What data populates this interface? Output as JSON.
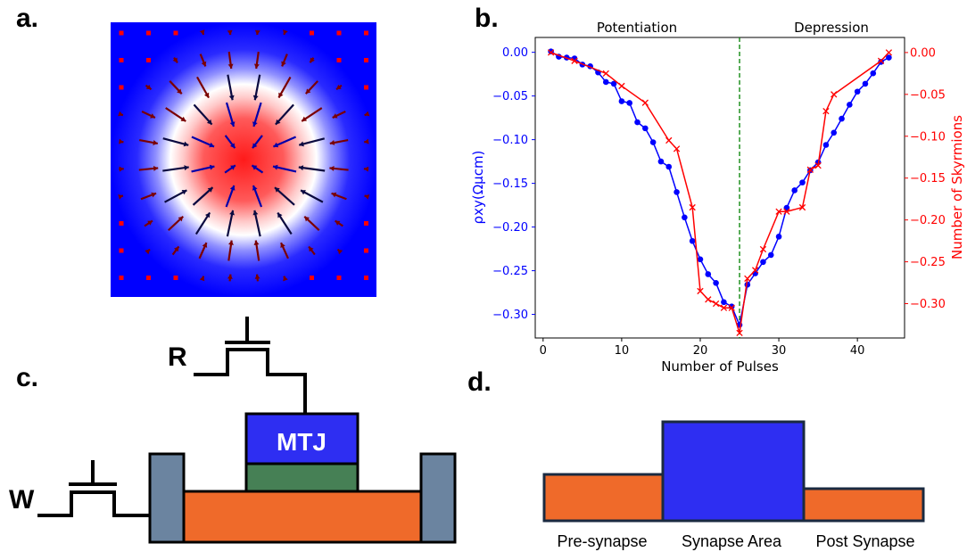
{
  "panels": {
    "a": "a.",
    "b": "b.",
    "c": "c.",
    "d": "d."
  },
  "colors": {
    "blue_series": "#0000ff",
    "red_series": "#ff0000",
    "divider": "#008000",
    "orange": "#ef6a2a",
    "mtj_blue": "#2e2ef2",
    "green": "#468055",
    "steel": "#6b84a0"
  },
  "skyrmion_map": {
    "description_icon": "skyrmion-spin-texture"
  },
  "chart_data": {
    "type": "line",
    "xlabel": "Number of Pulses",
    "ylabel_left": "ρxy(Ωμcm)",
    "ylabel_right": "Number of Skyrmions",
    "section_left": "Potentiation",
    "section_right": "Depression",
    "divider_x": 25,
    "xlim": [
      -1,
      46
    ],
    "ylim_left": [
      -0.327,
      0.017
    ],
    "ylim_right": [
      -0.341,
      0.018
    ],
    "xticks": [
      0,
      10,
      20,
      30,
      40
    ],
    "yticks_left": [
      0.0,
      -0.05,
      -0.1,
      -0.15,
      -0.2,
      -0.25,
      -0.3
    ],
    "yticks_right": [
      0.0,
      -0.05,
      -0.1,
      -0.15,
      -0.2,
      -0.25,
      -0.3
    ],
    "xtick_labels": [
      "0",
      "10",
      "20",
      "30",
      "40"
    ],
    "ytick_labels_left": [
      "0.00",
      "−0.05",
      "−0.10",
      "−0.15",
      "−0.20",
      "−0.25",
      "−0.30"
    ],
    "ytick_labels_right": [
      "0.00",
      "−0.05",
      "−0.10",
      "−0.15",
      "−0.20",
      "−0.25",
      "−0.30"
    ],
    "series": [
      {
        "axis": "left",
        "marker": "circle",
        "color": "#0000ff",
        "x": [
          1,
          2,
          3,
          4,
          5,
          6,
          7,
          8,
          9,
          10,
          11,
          12,
          13,
          14,
          15,
          16,
          17,
          18,
          19,
          20,
          21,
          22,
          23,
          24,
          25,
          26,
          27,
          28,
          29,
          30,
          31,
          32,
          33,
          34,
          35,
          36,
          37,
          38,
          39,
          40,
          41,
          42,
          43,
          44
        ],
        "y": [
          0.001,
          -0.005,
          -0.006,
          -0.007,
          -0.014,
          -0.016,
          -0.023,
          -0.034,
          -0.036,
          -0.056,
          -0.058,
          -0.08,
          -0.087,
          -0.103,
          -0.125,
          -0.131,
          -0.16,
          -0.189,
          -0.216,
          -0.237,
          -0.254,
          -0.264,
          -0.286,
          -0.291,
          -0.312,
          -0.266,
          -0.253,
          -0.24,
          -0.232,
          -0.211,
          -0.178,
          -0.158,
          -0.149,
          -0.135,
          -0.126,
          -0.106,
          -0.092,
          -0.076,
          -0.06,
          -0.045,
          -0.036,
          -0.024,
          -0.011,
          -0.006
        ]
      },
      {
        "axis": "right",
        "marker": "x",
        "color": "#ff0000",
        "x": [
          1,
          4,
          8,
          10,
          13,
          16,
          17,
          19,
          20,
          21,
          22,
          23,
          24,
          25,
          26,
          27,
          28,
          30,
          31,
          33,
          34,
          35,
          36,
          37,
          43,
          44
        ],
        "y": [
          0.0,
          -0.01,
          -0.025,
          -0.04,
          -0.06,
          -0.105,
          -0.115,
          -0.185,
          -0.285,
          -0.295,
          -0.3,
          -0.305,
          -0.305,
          -0.335,
          -0.27,
          -0.26,
          -0.235,
          -0.19,
          -0.19,
          -0.185,
          -0.14,
          -0.135,
          -0.07,
          -0.05,
          -0.01,
          0.0
        ]
      }
    ]
  },
  "circuit": {
    "read_label": "R",
    "write_label": "W",
    "mtj_label": "MTJ"
  },
  "synapse": {
    "labels": [
      "Pre-synapse",
      "Synapse Area",
      "Post Synapse"
    ]
  }
}
